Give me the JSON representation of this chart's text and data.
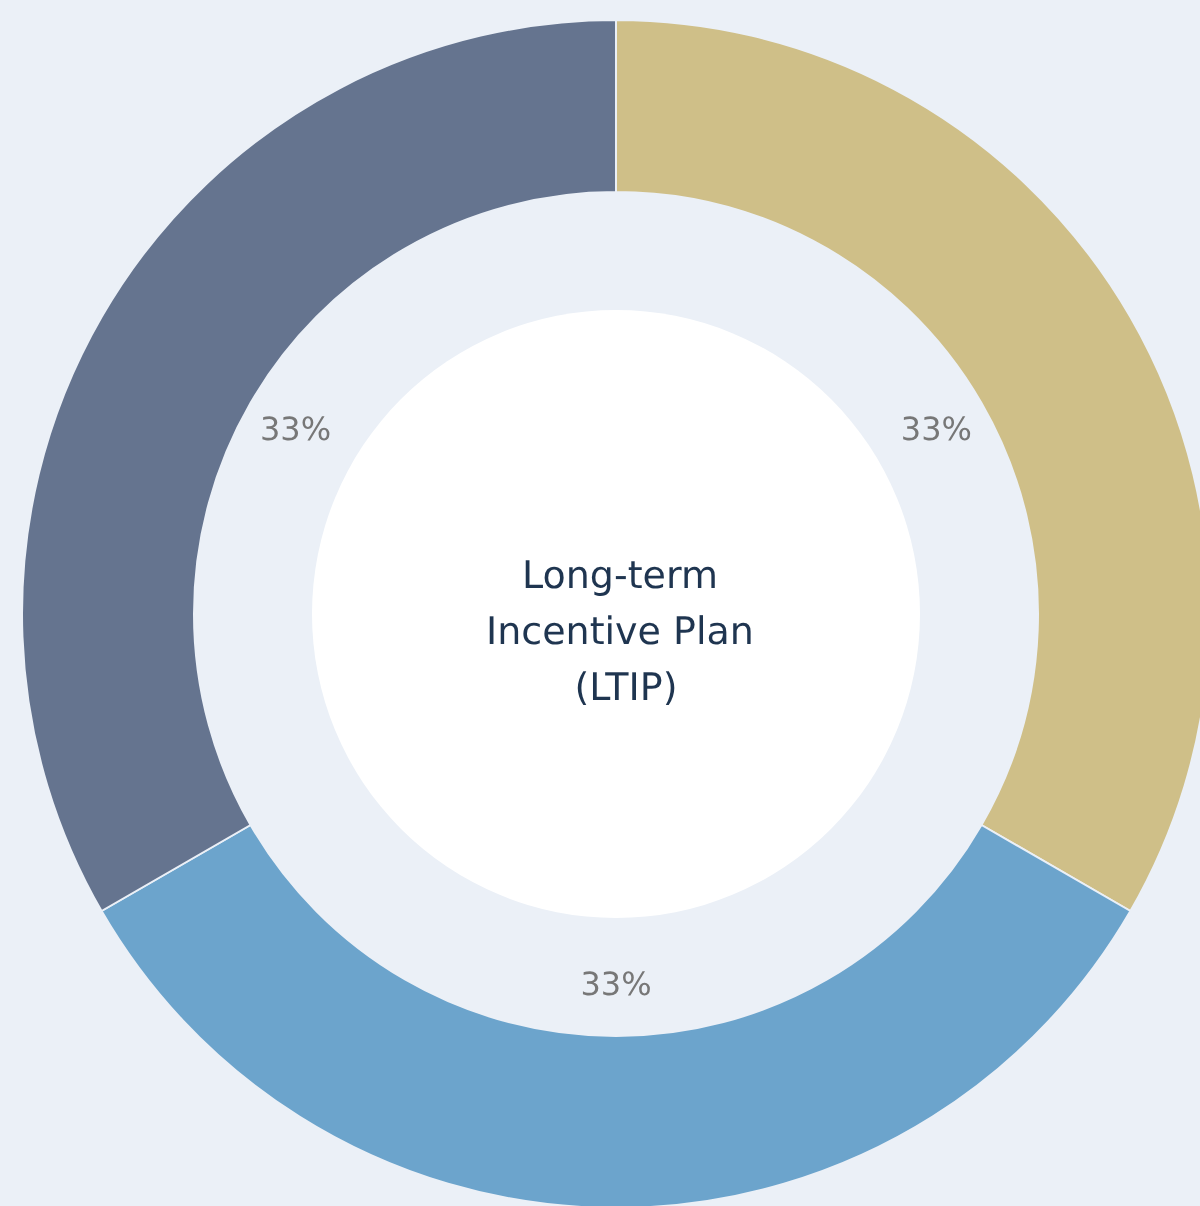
{
  "chart_data": {
    "type": "donut",
    "title": "Long-term Incentive Plan (LTIP)",
    "categories": [
      null,
      null,
      null
    ],
    "values": [
      33,
      33,
      33
    ],
    "value_labels": [
      "33%",
      "33%",
      "33%"
    ],
    "colors": [
      "#cfbf88",
      "#6ca4cc",
      "#65748f"
    ]
  }
}
